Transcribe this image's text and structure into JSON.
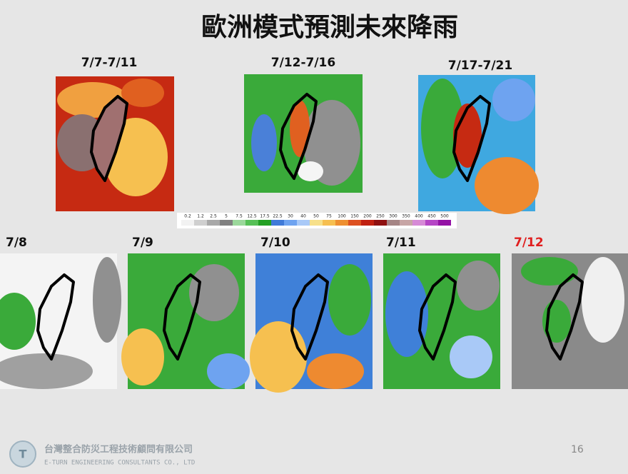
{
  "header": {
    "title": "歐洲模式預測未來降雨"
  },
  "panels": {
    "top": [
      "7/7-7/11",
      "7/12-7/16",
      "7/17-7/21"
    ],
    "bottom": [
      "7/8",
      "7/9",
      "7/10",
      "7/11",
      "7/12"
    ]
  },
  "colorbar": {
    "labels": [
      0.2,
      1.2,
      2.5,
      5,
      7.5,
      12.5,
      17.5,
      22.5,
      30,
      40,
      50,
      75,
      100,
      150,
      200,
      250,
      300,
      350,
      400,
      450,
      500
    ],
    "colors": [
      "#f2f2f2",
      "#cfcfcf",
      "#a8a8a8",
      "#808080",
      "#9bd89b",
      "#56c056",
      "#23a023",
      "#3f7ad8",
      "#6ea3f0",
      "#a9c9f7",
      "#f7e08a",
      "#f6bf50",
      "#ee8f30",
      "#dd5020",
      "#c02010",
      "#8f1010",
      "#a58585",
      "#c7a5a5",
      "#d68ad6",
      "#b545c5",
      "#9412a5"
    ]
  },
  "footer": {
    "company": "台灣整合防災工程技術顧問有限公司",
    "company_en": "E-TURN ENGINEERING CONSULTANTS CO., LTD",
    "page": "16"
  }
}
